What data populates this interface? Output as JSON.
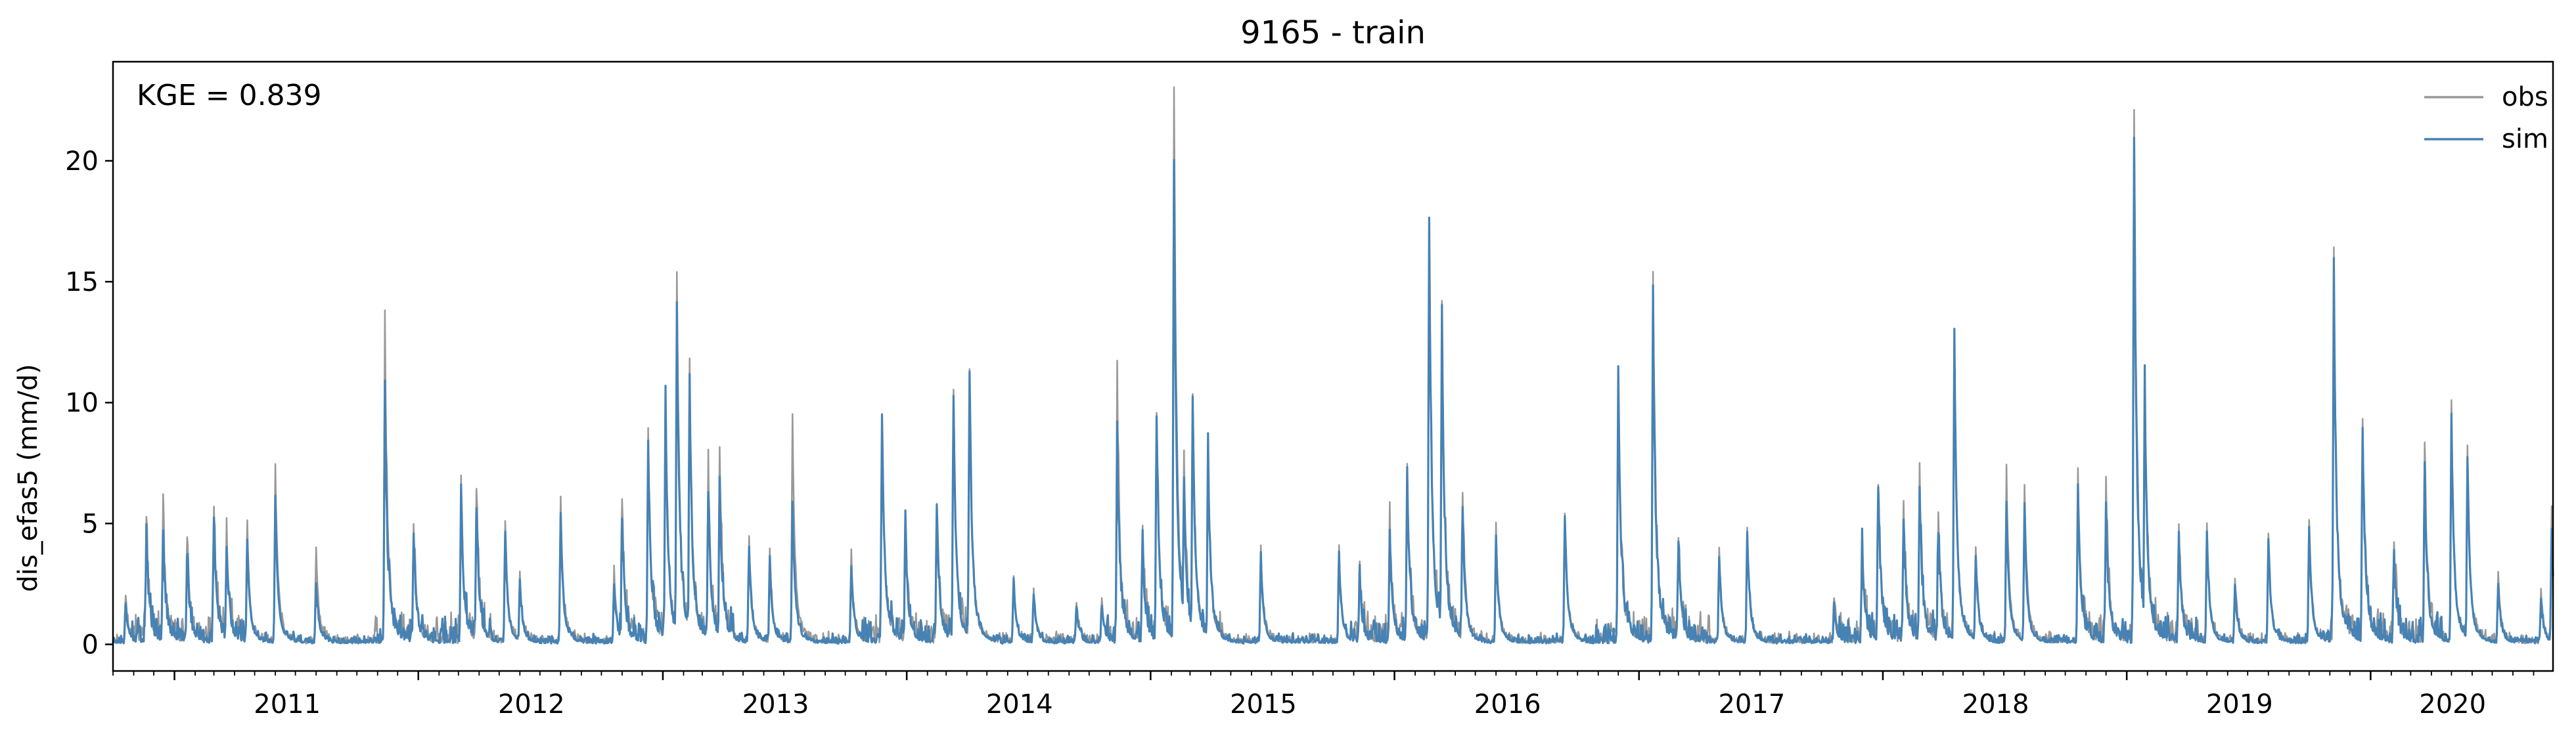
{
  "chart_data": {
    "type": "line",
    "title": "9165 - train",
    "xlabel": "",
    "ylabel": "dis_efas5 (mm/d)",
    "annotation": "KGE = 0.839",
    "xlim": [
      "2010-10-01",
      "2020-09-30"
    ],
    "ylim": [
      -1.1,
      24.1
    ],
    "x_tick_labels": [
      "2011",
      "2012",
      "2013",
      "2014",
      "2015",
      "2016",
      "2017",
      "2018",
      "2019",
      "2020"
    ],
    "y_ticks": [
      0,
      5,
      10,
      15,
      20
    ],
    "grid": false,
    "legend_position": "top-right",
    "series": [
      {
        "name": "obs",
        "color": "#999999",
        "peaks": [
          [
            "2010-10-20",
            2.0
          ],
          [
            "2010-11-20",
            5.0
          ],
          [
            "2010-12-15",
            5.5
          ],
          [
            "2011-01-20",
            4.2
          ],
          [
            "2011-03-01",
            5.7
          ],
          [
            "2011-03-20",
            4.8
          ],
          [
            "2011-04-20",
            4.9
          ],
          [
            "2011-06-01",
            7.4
          ],
          [
            "2011-08-01",
            3.9
          ],
          [
            "2011-11-12",
            13.2
          ],
          [
            "2011-12-25",
            4.6
          ],
          [
            "2012-03-05",
            6.0
          ],
          [
            "2012-03-28",
            6.0
          ],
          [
            "2012-05-10",
            5.1
          ],
          [
            "2012-06-01",
            2.8
          ],
          [
            "2012-08-01",
            6.1
          ],
          [
            "2012-10-20",
            3.0
          ],
          [
            "2012-11-01",
            5.8
          ],
          [
            "2012-12-10",
            8.3
          ],
          [
            "2013-01-05",
            10.3
          ],
          [
            "2013-01-22",
            15.2
          ],
          [
            "2013-02-10",
            10.8
          ],
          [
            "2013-03-10",
            7.2
          ],
          [
            "2013-03-27",
            7.9
          ],
          [
            "2013-05-10",
            4.2
          ],
          [
            "2013-06-10",
            3.9
          ],
          [
            "2013-07-14",
            9.2
          ],
          [
            "2013-10-10",
            3.7
          ],
          [
            "2013-11-25",
            9.4
          ],
          [
            "2013-12-30",
            5.0
          ],
          [
            "2014-02-15",
            5.6
          ],
          [
            "2014-03-12",
            10.3
          ],
          [
            "2014-04-05",
            11.3
          ],
          [
            "2014-06-10",
            2.8
          ],
          [
            "2014-07-10",
            2.2
          ],
          [
            "2014-09-12",
            1.7
          ],
          [
            "2014-10-20",
            1.8
          ],
          [
            "2014-11-12",
            11.0
          ],
          [
            "2014-12-20",
            4.9
          ],
          [
            "2015-01-10",
            9.2
          ],
          [
            "2015-02-05",
            23.0
          ],
          [
            "2015-02-20",
            7.7
          ],
          [
            "2015-03-05",
            10.2
          ],
          [
            "2015-03-28",
            7.8
          ],
          [
            "2015-06-15",
            3.9
          ],
          [
            "2015-10-10",
            3.9
          ],
          [
            "2015-11-10",
            2.9
          ],
          [
            "2015-12-25",
            4.8
          ],
          [
            "2016-01-20",
            7.4
          ],
          [
            "2016-02-22",
            17.3
          ],
          [
            "2016-03-12",
            13.7
          ],
          [
            "2016-04-12",
            6.2
          ],
          [
            "2016-06-01",
            4.8
          ],
          [
            "2016-09-12",
            5.3
          ],
          [
            "2016-12-01",
            10.9
          ],
          [
            "2017-01-22",
            15.2
          ],
          [
            "2017-03-01",
            4.3
          ],
          [
            "2017-05-01",
            4.0
          ],
          [
            "2017-06-12",
            4.7
          ],
          [
            "2017-10-20",
            1.9
          ],
          [
            "2017-12-01",
            4.4
          ],
          [
            "2017-12-25",
            6.6
          ],
          [
            "2018-02-01",
            5.5
          ],
          [
            "2018-02-25",
            7.1
          ],
          [
            "2018-03-25",
            5.1
          ],
          [
            "2018-04-18",
            12.8
          ],
          [
            "2018-05-20",
            3.9
          ],
          [
            "2018-07-05",
            7.2
          ],
          [
            "2018-08-01",
            6.6
          ],
          [
            "2018-10-20",
            7.2
          ],
          [
            "2018-12-01",
            6.6
          ],
          [
            "2019-01-12",
            22.0
          ],
          [
            "2019-01-28",
            10.7
          ],
          [
            "2019-03-20",
            4.5
          ],
          [
            "2019-05-01",
            4.7
          ],
          [
            "2019-06-12",
            2.7
          ],
          [
            "2019-08-01",
            4.5
          ],
          [
            "2019-10-01",
            5.1
          ],
          [
            "2019-11-07",
            15.3
          ],
          [
            "2019-12-20",
            9.2
          ],
          [
            "2020-02-05",
            4.2
          ],
          [
            "2020-03-22",
            8.0
          ],
          [
            "2020-05-01",
            9.9
          ],
          [
            "2020-05-25",
            8.1
          ],
          [
            "2020-07-10",
            2.8
          ],
          [
            "2020-09-12",
            2.1
          ],
          [
            "2020-09-28",
            5.6
          ]
        ]
      },
      {
        "name": "sim",
        "color": "#4682b4",
        "peaks": [
          [
            "2010-10-20",
            1.5
          ],
          [
            "2010-11-20",
            4.2
          ],
          [
            "2010-12-15",
            4.2
          ],
          [
            "2011-01-20",
            3.5
          ],
          [
            "2011-03-01",
            5.0
          ],
          [
            "2011-03-20",
            4.0
          ],
          [
            "2011-04-20",
            4.3
          ],
          [
            "2011-06-01",
            6.0
          ],
          [
            "2011-08-01",
            2.5
          ],
          [
            "2011-11-12",
            9.9
          ],
          [
            "2011-12-25",
            4.4
          ],
          [
            "2012-03-05",
            5.9
          ],
          [
            "2012-03-28",
            5.5
          ],
          [
            "2012-05-10",
            4.5
          ],
          [
            "2012-06-01",
            2.6
          ],
          [
            "2012-08-01",
            5.1
          ],
          [
            "2012-10-20",
            2.3
          ],
          [
            "2012-11-01",
            4.4
          ],
          [
            "2012-12-10",
            8.3
          ],
          [
            "2013-01-05",
            9.9
          ],
          [
            "2013-01-22",
            14.1
          ],
          [
            "2013-02-10",
            10.8
          ],
          [
            "2013-03-10",
            6.3
          ],
          [
            "2013-03-27",
            6.8
          ],
          [
            "2013-05-10",
            4.0
          ],
          [
            "2013-06-10",
            3.5
          ],
          [
            "2013-07-14",
            5.9
          ],
          [
            "2013-10-10",
            3.2
          ],
          [
            "2013-11-25",
            9.3
          ],
          [
            "2013-12-30",
            4.6
          ],
          [
            "2014-02-15",
            5.4
          ],
          [
            "2014-03-12",
            10.2
          ],
          [
            "2014-04-05",
            11.2
          ],
          [
            "2014-06-10",
            2.6
          ],
          [
            "2014-07-10",
            2.0
          ],
          [
            "2014-09-12",
            1.5
          ],
          [
            "2014-10-20",
            1.6
          ],
          [
            "2014-11-12",
            8.3
          ],
          [
            "2014-12-20",
            4.0
          ],
          [
            "2015-01-10",
            9.1
          ],
          [
            "2015-02-05",
            19.8
          ],
          [
            "2015-02-20",
            6.9
          ],
          [
            "2015-03-05",
            10.2
          ],
          [
            "2015-03-28",
            7.8
          ],
          [
            "2015-06-15",
            3.6
          ],
          [
            "2015-10-10",
            3.5
          ],
          [
            "2015-11-10",
            2.5
          ],
          [
            "2015-12-25",
            4.3
          ],
          [
            "2016-01-20",
            7.0
          ],
          [
            "2016-02-22",
            17.0
          ],
          [
            "2016-03-12",
            13.7
          ],
          [
            "2016-04-12",
            5.6
          ],
          [
            "2016-06-01",
            4.2
          ],
          [
            "2016-09-12",
            5.3
          ],
          [
            "2016-12-01",
            10.9
          ],
          [
            "2017-01-22",
            13.9
          ],
          [
            "2017-03-01",
            4.1
          ],
          [
            "2017-05-01",
            3.6
          ],
          [
            "2017-06-12",
            4.6
          ],
          [
            "2017-10-20",
            1.5
          ],
          [
            "2017-12-01",
            3.7
          ],
          [
            "2017-12-25",
            6.5
          ],
          [
            "2018-02-01",
            5.1
          ],
          [
            "2018-02-25",
            6.4
          ],
          [
            "2018-03-25",
            4.6
          ],
          [
            "2018-04-18",
            12.8
          ],
          [
            "2018-05-20",
            3.6
          ],
          [
            "2018-07-05",
            5.7
          ],
          [
            "2018-08-01",
            5.5
          ],
          [
            "2018-10-20",
            6.3
          ],
          [
            "2018-12-01",
            5.3
          ],
          [
            "2019-01-12",
            20.7
          ],
          [
            "2019-01-28",
            10.7
          ],
          [
            "2019-03-20",
            4.3
          ],
          [
            "2019-05-01",
            4.6
          ],
          [
            "2019-06-12",
            2.3
          ],
          [
            "2019-08-01",
            4.3
          ],
          [
            "2019-10-01",
            4.8
          ],
          [
            "2019-11-07",
            15.3
          ],
          [
            "2019-12-20",
            8.9
          ],
          [
            "2020-02-05",
            3.8
          ],
          [
            "2020-03-22",
            6.9
          ],
          [
            "2020-05-01",
            9.3
          ],
          [
            "2020-05-25",
            7.7
          ],
          [
            "2020-07-10",
            2.4
          ],
          [
            "2020-09-12",
            1.8
          ],
          [
            "2020-09-28",
            4.5
          ]
        ]
      }
    ]
  }
}
